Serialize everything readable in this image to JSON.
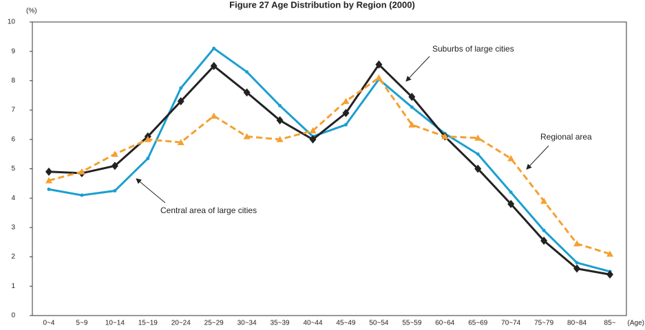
{
  "chart_data": {
    "type": "line",
    "title": "Figure 27   Age Distribution by Region (2000)",
    "y_label": "(%)",
    "x_label": "(Age)",
    "categories": [
      "0~4",
      "5~9",
      "10~14",
      "15~19",
      "20~24",
      "25~29",
      "30~34",
      "35~39",
      "40~44",
      "45~49",
      "50~54",
      "55~59",
      "60~64",
      "65~69",
      "70~74",
      "75~79",
      "80~84",
      "85~"
    ],
    "series": [
      {
        "name": "Central area of large cities",
        "color": "#1a9fd0",
        "marker": "circle",
        "dashed": false,
        "values": [
          4.3,
          4.1,
          4.25,
          5.35,
          7.75,
          9.1,
          8.3,
          7.15,
          6.1,
          6.5,
          8.05,
          7.1,
          6.2,
          5.5,
          4.2,
          2.9,
          1.8,
          1.5
        ]
      },
      {
        "name": "Suburbs of large cities",
        "color": "#222222",
        "marker": "diamond",
        "dashed": false,
        "values": [
          4.9,
          4.85,
          5.1,
          6.1,
          7.3,
          8.5,
          7.6,
          6.65,
          6.0,
          6.9,
          8.55,
          7.45,
          6.1,
          5.0,
          3.8,
          2.55,
          1.6,
          1.4
        ]
      },
      {
        "name": "Regional area",
        "color": "#f5a030",
        "marker": "triangle",
        "dashed": true,
        "values": [
          4.6,
          4.9,
          5.5,
          6.0,
          5.9,
          6.8,
          6.1,
          6.0,
          6.3,
          7.3,
          8.1,
          6.5,
          6.1,
          6.05,
          5.35,
          3.9,
          2.45,
          2.1
        ]
      }
    ],
    "ylim": [
      0,
      10
    ],
    "yticks": [
      0,
      1,
      2,
      3,
      4,
      5,
      6,
      7,
      8,
      9,
      10
    ],
    "grid": false
  }
}
